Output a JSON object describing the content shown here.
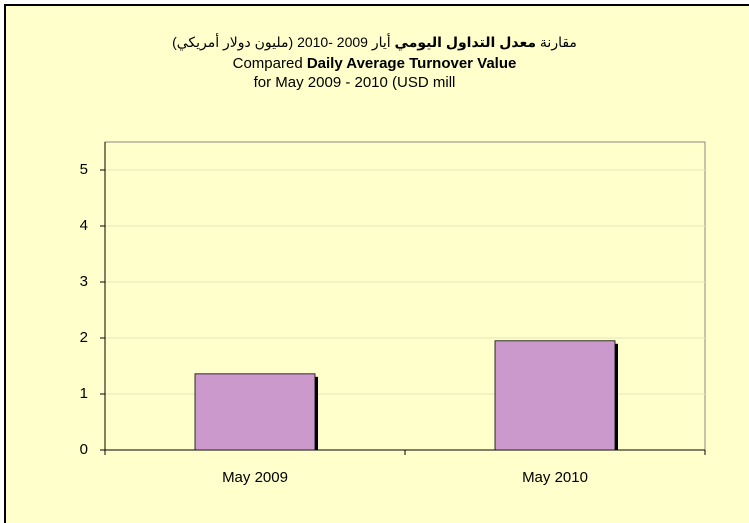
{
  "chart_data": {
    "type": "bar",
    "title": [
      [
        "مقارنة ",
        "معدل التداول اليومي",
        "  أيار 2009 -2010 (مليون دولار أمريكي)"
      ],
      [
        "Compared ",
        "Daily Average Turnover Value"
      ],
      [
        "for May   2009 - 2010 (USD mill"
      ]
    ],
    "categories": [
      "May 2009",
      "May 2010"
    ],
    "values": [
      1.36,
      1.95
    ],
    "color": "#cc99cc",
    "ylim": [
      0,
      5.5
    ],
    "yticks": [
      0,
      1,
      2,
      3,
      4,
      5
    ],
    "grid": true
  }
}
